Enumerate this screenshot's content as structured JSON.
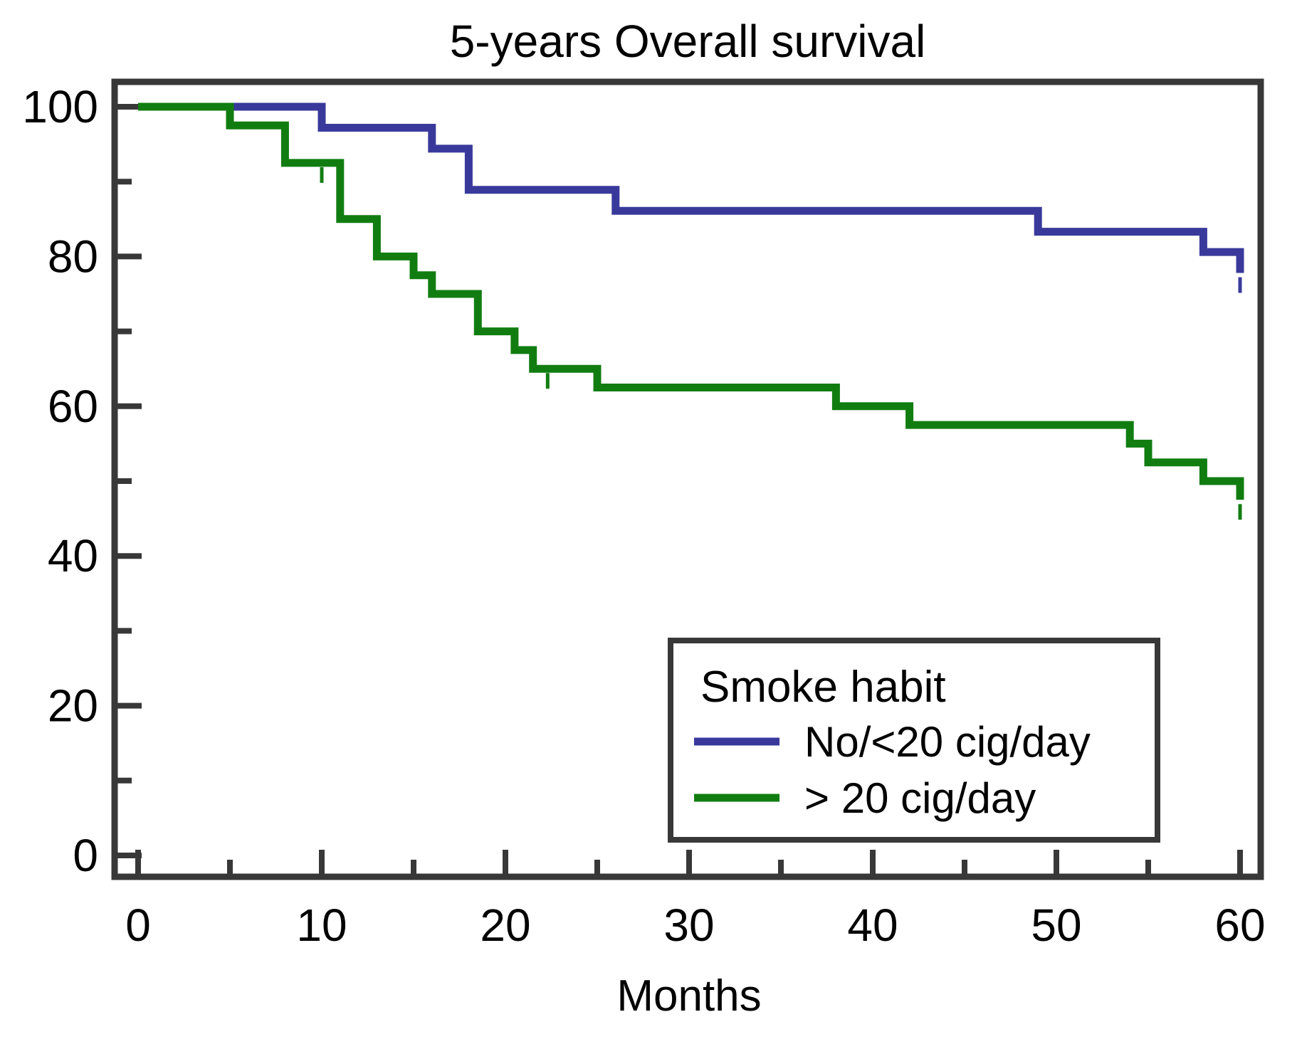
{
  "chart_data": {
    "type": "line",
    "subtype": "kaplan-meier-step",
    "title": "5-years Overall survival",
    "xlabel": "Months",
    "ylabel": "",
    "xlim": [
      0,
      60
    ],
    "ylim": [
      0,
      100
    ],
    "x_ticks": [
      0,
      10,
      20,
      30,
      40,
      50,
      60
    ],
    "x_minor_step": 5,
    "y_ticks": [
      0,
      20,
      40,
      60,
      80,
      100
    ],
    "y_minor_step": 10,
    "grid": false,
    "legend": {
      "title": "Smoke habit",
      "position": "inside-bottom-right"
    },
    "series": [
      {
        "name": "No/<20 cig/day",
        "color": "#39399c",
        "start": [
          0,
          100
        ],
        "events": [
          [
            10,
            97.2
          ],
          [
            16,
            94.4
          ],
          [
            18,
            88.9
          ],
          [
            26,
            86.1
          ],
          [
            49,
            83.3
          ],
          [
            58,
            80.6
          ],
          [
            60,
            77.8
          ]
        ],
        "censor_marks": [
          [
            60,
            77.8
          ]
        ]
      },
      {
        "name": "> 20 cig/day",
        "color": "#117d11",
        "start": [
          0,
          100
        ],
        "events": [
          [
            5,
            97.5
          ],
          [
            8,
            92.5
          ],
          [
            11,
            85
          ],
          [
            13,
            80
          ],
          [
            15,
            77.5
          ],
          [
            16,
            75
          ],
          [
            18.5,
            70
          ],
          [
            20.5,
            67.5
          ],
          [
            21.5,
            65
          ],
          [
            25,
            62.5
          ],
          [
            38,
            60
          ],
          [
            42,
            57.5
          ],
          [
            54,
            55
          ],
          [
            55,
            52.5
          ],
          [
            58,
            50
          ],
          [
            60,
            47.5
          ]
        ],
        "censor_marks": [
          [
            10,
            92.5
          ],
          [
            22.3,
            65
          ],
          [
            60,
            47.5
          ]
        ]
      }
    ]
  }
}
